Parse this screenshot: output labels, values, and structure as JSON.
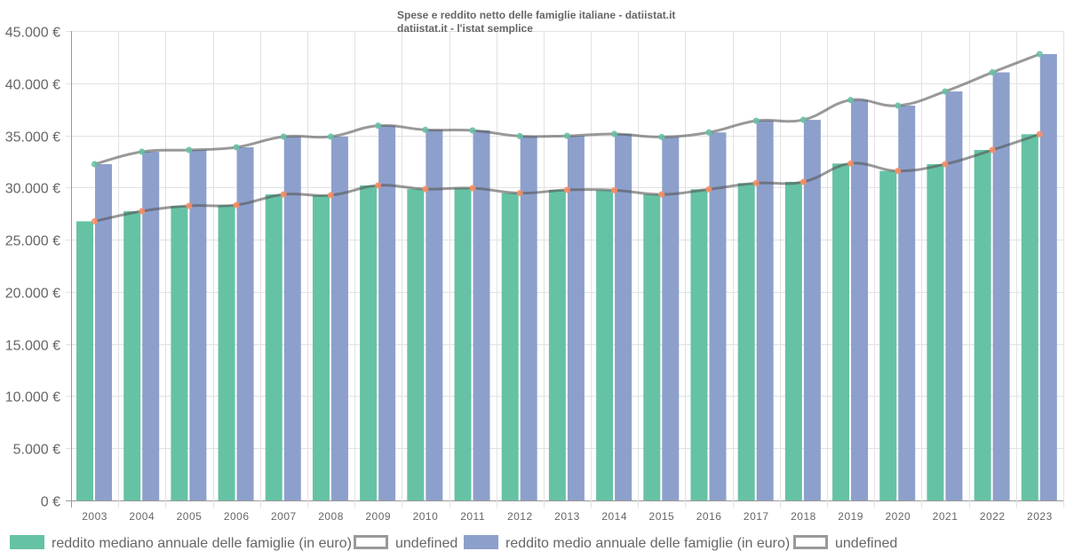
{
  "chart_data": {
    "type": "bar",
    "title": "Spese e reddito netto delle famiglie italiane - datiistat.it",
    "subtitle": "datiistat.it - l'istat semplice",
    "xlabel": "",
    "ylabel": "",
    "ylim": [
      0,
      45000
    ],
    "y_ticks": [
      0,
      5000,
      10000,
      15000,
      20000,
      25000,
      30000,
      35000,
      40000,
      45000
    ],
    "y_tick_labels": [
      "0 €",
      "5.000 €",
      "10.000 €",
      "15.000 €",
      "20.000 €",
      "25.000 €",
      "30.000 €",
      "35.000 €",
      "40.000 €",
      "45.000 €"
    ],
    "grid": true,
    "legend_position": "bottom",
    "categories": [
      "2003",
      "2004",
      "2005",
      "2006",
      "2007",
      "2008",
      "2009",
      "2010",
      "2011",
      "2012",
      "2013",
      "2014",
      "2015",
      "2016",
      "2017",
      "2018",
      "2019",
      "2020",
      "2021",
      "2022",
      "2023"
    ],
    "series": [
      {
        "name": "reddito mediano annuale delle famiglie (in euro)",
        "kind": "bar",
        "color": "#66c2a5",
        "values": [
          26760,
          27730,
          28240,
          28320,
          29340,
          29260,
          30200,
          29850,
          29940,
          29460,
          29770,
          29740,
          29340,
          29830,
          30420,
          30540,
          32300,
          31590,
          32240,
          33600,
          35110
        ]
      },
      {
        "name": "undefined",
        "kind": "line",
        "color": "#999999",
        "marker_color": "#fc8d62",
        "values": [
          26760,
          27730,
          28240,
          28320,
          29340,
          29260,
          30200,
          29850,
          29940,
          29460,
          29770,
          29740,
          29340,
          29830,
          30420,
          30540,
          32300,
          31590,
          32240,
          33600,
          35110
        ]
      },
      {
        "name": "reddito medio annuale delle famiglie (in euro)",
        "kind": "bar",
        "color": "#8da0cb",
        "values": [
          32240,
          33430,
          33600,
          33860,
          34880,
          34880,
          35930,
          35530,
          35470,
          34930,
          34950,
          35130,
          34850,
          35280,
          36400,
          36490,
          38390,
          37850,
          39210,
          41040,
          42790
        ]
      },
      {
        "name": "undefined",
        "kind": "line",
        "color": "#999999",
        "marker_color": "#66c2a5",
        "values": [
          32240,
          33430,
          33600,
          33860,
          34880,
          34880,
          35930,
          35530,
          35470,
          34930,
          34950,
          35130,
          34850,
          35280,
          36400,
          36490,
          38390,
          37850,
          39210,
          41040,
          42790
        ]
      }
    ]
  }
}
